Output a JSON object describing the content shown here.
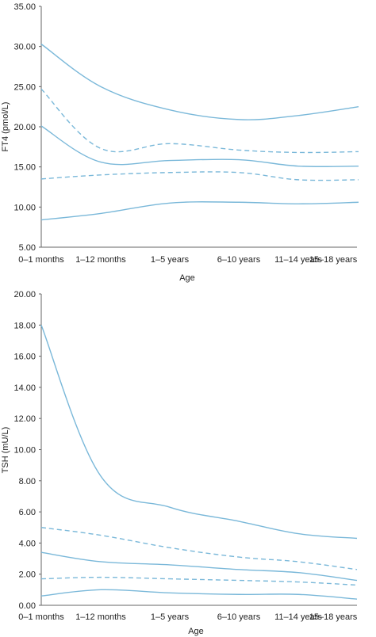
{
  "chart_data": [
    {
      "type": "line",
      "xlabel": "Age",
      "ylabel": "FT4 (pmol/L)",
      "categories": [
        "0–1 months",
        "1–12 months",
        "1–5 years",
        "6–10 years",
        "11–14 years",
        "15–18 years"
      ],
      "ylim": [
        5,
        35
      ],
      "yticks": [
        "5.00",
        "10.00",
        "15.00",
        "20.00",
        "25.00",
        "30.00",
        "35.00"
      ],
      "grid": false,
      "color": "#7ab8d9",
      "series": [
        {
          "dash": false,
          "values": [
            30.3,
            25.0,
            22.1,
            20.9,
            21.4,
            22.5
          ]
        },
        {
          "dash": true,
          "values": [
            24.7,
            17.3,
            17.9,
            17.1,
            16.8,
            16.9
          ]
        },
        {
          "dash": false,
          "values": [
            20.1,
            15.6,
            15.8,
            15.9,
            15.1,
            15.1
          ]
        },
        {
          "dash": true,
          "values": [
            13.5,
            14.0,
            14.3,
            14.3,
            13.4,
            13.4
          ]
        },
        {
          "dash": false,
          "values": [
            8.4,
            9.2,
            10.5,
            10.6,
            10.4,
            10.6
          ]
        }
      ]
    },
    {
      "type": "line",
      "xlabel": "Age",
      "ylabel": "TSH (mU/L)",
      "categories": [
        "0–1 months",
        "1–12 months",
        "1–5 years",
        "6–10 years",
        "11–14 years",
        "15–18 years"
      ],
      "ylim": [
        0,
        20
      ],
      "yticks": [
        "0.00",
        "2.00",
        "4.00",
        "6.00",
        "8.00",
        "10.00",
        "12.00",
        "14.00",
        "16.00",
        "18.00",
        "20.00"
      ],
      "grid": false,
      "color": "#7ab8d9",
      "series": [
        {
          "dash": false,
          "values": [
            18.0,
            8.3,
            6.3,
            5.4,
            4.6,
            4.3
          ]
        },
        {
          "dash": true,
          "values": [
            5.0,
            4.5,
            3.7,
            3.1,
            2.8,
            2.3
          ]
        },
        {
          "dash": false,
          "values": [
            3.4,
            2.8,
            2.6,
            2.3,
            2.1,
            1.6
          ]
        },
        {
          "dash": true,
          "values": [
            1.7,
            1.8,
            1.7,
            1.6,
            1.5,
            1.3
          ]
        },
        {
          "dash": false,
          "values": [
            0.6,
            1.0,
            0.8,
            0.7,
            0.7,
            0.4
          ]
        }
      ]
    }
  ]
}
